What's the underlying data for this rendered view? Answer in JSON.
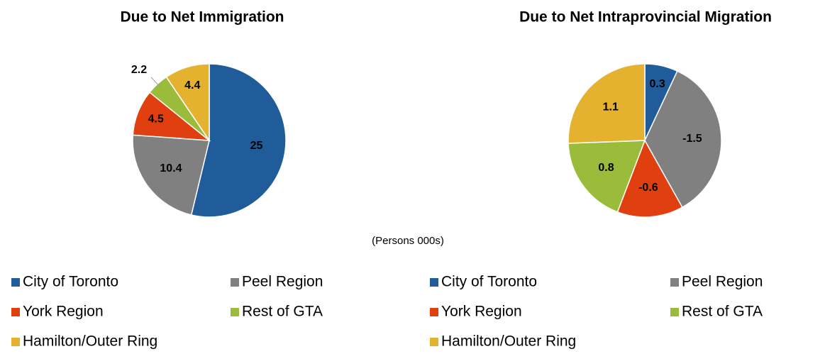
{
  "chart_data": [
    {
      "type": "pie",
      "title": "Due to Net Immigration",
      "categories": [
        "City of Toronto",
        "Peel Region",
        "York Region",
        "Rest of GTA",
        "Hamilton/Outer Ring"
      ],
      "values": [
        25,
        10.4,
        4.5,
        2.2,
        4.4
      ],
      "colors": [
        "#1f5c99",
        "#808080",
        "#e0400f",
        "#9bbb3b",
        "#e4b22f"
      ]
    },
    {
      "type": "pie",
      "title": "Due to Net Intraprovincial Migration",
      "categories": [
        "City of Toronto",
        "Peel Region",
        "York Region",
        "Rest of GTA",
        "Hamilton/Outer Ring"
      ],
      "values": [
        0.3,
        -1.5,
        -0.6,
        0.8,
        1.1
      ],
      "colors": [
        "#1f5c99",
        "#808080",
        "#e0400f",
        "#9bbb3b",
        "#e4b22f"
      ]
    }
  ],
  "note": "(Persons 000s)"
}
